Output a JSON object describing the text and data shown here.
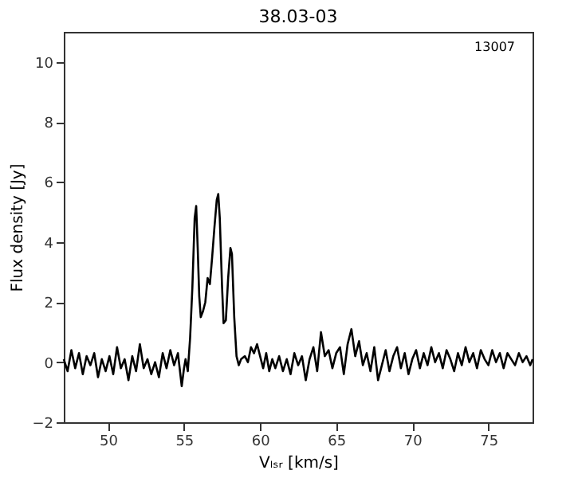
{
  "chart_data": {
    "type": "line",
    "title": "38.03-03",
    "xlabel": "Vₗₛᵣ [km/s]",
    "ylabel": "Flux density [Jy]",
    "annotations": [
      "13007"
    ],
    "xlim": [
      47.1,
      77.9
    ],
    "xticks": [
      50,
      55,
      60,
      65,
      70,
      75
    ],
    "ylim": [
      -2,
      11
    ],
    "yticks": [
      -2,
      0,
      2,
      4,
      6,
      8,
      10
    ],
    "grid": false,
    "legend": false,
    "marker": "none",
    "line_style": "solid",
    "series": [
      {
        "color": "#000000",
        "x": [
          47.1,
          47.35,
          47.6,
          47.85,
          48.1,
          48.35,
          48.6,
          48.85,
          49.1,
          49.35,
          49.6,
          49.85,
          50.1,
          50.35,
          50.6,
          50.85,
          51.1,
          51.35,
          51.6,
          51.85,
          52.1,
          52.35,
          52.6,
          52.85,
          53.1,
          53.35,
          53.6,
          53.85,
          54.1,
          54.35,
          54.6,
          54.85,
          55.0,
          55.1,
          55.25,
          55.4,
          55.55,
          55.7,
          55.8,
          55.9,
          56.0,
          56.1,
          56.25,
          56.4,
          56.55,
          56.7,
          56.85,
          57.0,
          57.15,
          57.25,
          57.35,
          57.5,
          57.6,
          57.75,
          57.9,
          58.05,
          58.15,
          58.3,
          58.45,
          58.6,
          58.75,
          59.0,
          59.2,
          59.4,
          59.6,
          59.8,
          60.0,
          60.2,
          60.4,
          60.6,
          60.8,
          61.0,
          61.25,
          61.5,
          61.75,
          62.0,
          62.25,
          62.5,
          62.75,
          63.0,
          63.25,
          63.5,
          63.75,
          64.0,
          64.25,
          64.5,
          64.75,
          65.0,
          65.25,
          65.5,
          65.75,
          66.0,
          66.25,
          66.5,
          66.75,
          67.0,
          67.25,
          67.5,
          67.75,
          68.0,
          68.25,
          68.5,
          68.75,
          69.0,
          69.25,
          69.5,
          69.75,
          70.0,
          70.25,
          70.5,
          70.75,
          71.0,
          71.25,
          71.5,
          71.75,
          72.0,
          72.25,
          72.5,
          72.75,
          73.0,
          73.25,
          73.5,
          73.75,
          74.0,
          74.25,
          74.5,
          74.75,
          75.0,
          75.25,
          75.5,
          75.75,
          76.0,
          76.25,
          76.5,
          76.75,
          77.0,
          77.25,
          77.5,
          77.75,
          77.9
        ],
        "values": [
          0.1,
          -0.3,
          0.4,
          -0.2,
          0.3,
          -0.4,
          0.2,
          -0.1,
          0.3,
          -0.5,
          0.1,
          -0.3,
          0.2,
          -0.4,
          0.5,
          -0.2,
          0.1,
          -0.6,
          0.2,
          -0.3,
          0.6,
          -0.2,
          0.1,
          -0.4,
          0.0,
          -0.5,
          0.3,
          -0.2,
          0.4,
          -0.1,
          0.3,
          -0.8,
          -0.2,
          0.1,
          -0.3,
          0.8,
          2.5,
          4.8,
          5.2,
          3.8,
          2.2,
          1.5,
          1.7,
          2.0,
          2.8,
          2.6,
          3.5,
          4.5,
          5.4,
          5.6,
          4.8,
          2.5,
          1.3,
          1.4,
          2.8,
          3.8,
          3.6,
          1.5,
          0.2,
          -0.1,
          0.1,
          0.2,
          0.0,
          0.5,
          0.3,
          0.6,
          0.2,
          -0.2,
          0.3,
          -0.3,
          0.1,
          -0.2,
          0.2,
          -0.3,
          0.1,
          -0.4,
          0.3,
          -0.1,
          0.2,
          -0.6,
          0.1,
          0.5,
          -0.3,
          1.0,
          0.2,
          0.4,
          -0.2,
          0.3,
          0.5,
          -0.4,
          0.6,
          1.1,
          0.2,
          0.7,
          -0.1,
          0.3,
          -0.3,
          0.5,
          -0.6,
          -0.1,
          0.4,
          -0.3,
          0.2,
          0.5,
          -0.2,
          0.3,
          -0.4,
          0.1,
          0.4,
          -0.2,
          0.3,
          -0.1,
          0.5,
          0.0,
          0.3,
          -0.2,
          0.4,
          0.1,
          -0.3,
          0.3,
          -0.1,
          0.5,
          0.0,
          0.3,
          -0.2,
          0.4,
          0.1,
          -0.1,
          0.4,
          0.0,
          0.3,
          -0.2,
          0.3,
          0.1,
          -0.1,
          0.3,
          0.0,
          0.2,
          -0.1,
          0.1
        ]
      }
    ]
  }
}
